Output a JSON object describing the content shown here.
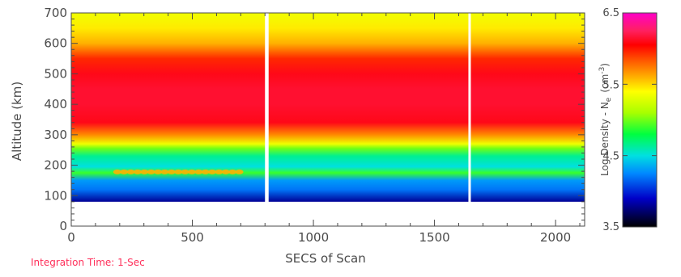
{
  "chart_data": {
    "type": "heatmap",
    "title": "",
    "xlabel": "SECS of Scan",
    "ylabel": "Altitude (km)",
    "xlim": [
      0,
      2120
    ],
    "ylim": [
      0,
      700
    ],
    "xticks": [
      0,
      500,
      1000,
      1500,
      2000
    ],
    "yticks": [
      0,
      100,
      200,
      300,
      400,
      500,
      600,
      700
    ],
    "data_altitude_range_km": [
      80,
      700
    ],
    "profile": {
      "altitude_km": [
        80,
        120,
        150,
        175,
        195,
        230,
        255,
        270,
        300,
        340,
        400,
        450,
        500,
        550,
        600,
        650,
        700
      ],
      "log_density": [
        3.8,
        4.2,
        4.3,
        4.9,
        4.5,
        4.65,
        5.0,
        5.35,
        5.7,
        6.1,
        6.15,
        6.15,
        6.1,
        5.95,
        5.6,
        5.45,
        5.35
      ]
    },
    "data_gaps_secs": [
      [
        800,
        815
      ],
      [
        1640,
        1648
      ]
    ],
    "sporadic_layer": {
      "secs_range": [
        190,
        720
      ],
      "altitude_km": 178
    },
    "colorbar": {
      "label": "Log Density - N",
      "label_subscript": "e",
      "label_units": "(cm",
      "label_units_sup": "-3",
      "label_units_close": ")",
      "range": [
        3.5,
        6.5
      ],
      "ticks": [
        "6.5",
        "5.5",
        "4.5",
        "3.5"
      ],
      "stops": [
        {
          "v": 3.5,
          "c": "#000000"
        },
        {
          "v": 3.9,
          "c": "#0000c8"
        },
        {
          "v": 4.25,
          "c": "#0088ff"
        },
        {
          "v": 4.5,
          "c": "#00e0e0"
        },
        {
          "v": 4.8,
          "c": "#00ff40"
        },
        {
          "v": 5.1,
          "c": "#a8ff00"
        },
        {
          "v": 5.4,
          "c": "#ffff00"
        },
        {
          "v": 5.6,
          "c": "#ffb000"
        },
        {
          "v": 5.85,
          "c": "#ff5000"
        },
        {
          "v": 6.05,
          "c": "#ff0000"
        },
        {
          "v": 6.25,
          "c": "#ff2060"
        },
        {
          "v": 6.5,
          "c": "#ff00c8"
        }
      ]
    }
  },
  "annotation": {
    "text": "Integration Time: 1-Sec",
    "color": "#ff2f5a"
  },
  "colors": {
    "axis": "#4a4a4a"
  }
}
